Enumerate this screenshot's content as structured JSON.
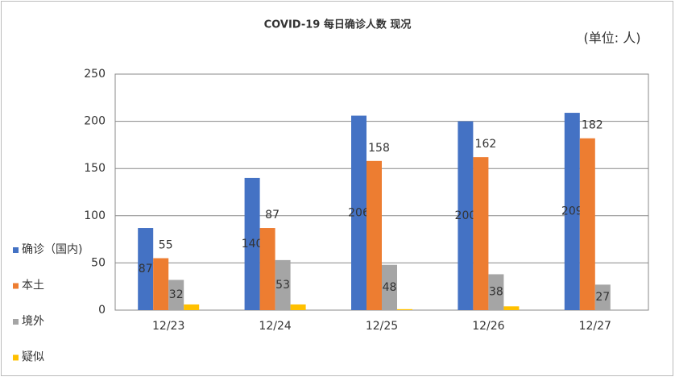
{
  "chart_data": {
    "type": "bar",
    "title": "COVID-19 每日确诊人数 现况",
    "unit_note": "(单位: 人)",
    "categories": [
      "12/23",
      "12/24",
      "12/25",
      "12/26",
      "12/27"
    ],
    "series": [
      {
        "name": "确诊（国内)",
        "color": "#4472c4",
        "values": [
          87,
          140,
          206,
          200,
          209
        ],
        "labels": "middle"
      },
      {
        "name": "本土",
        "color": "#ed7d31",
        "values": [
          55,
          87,
          158,
          162,
          182
        ],
        "labels": "top"
      },
      {
        "name": "境外",
        "color": "#a5a5a5",
        "values": [
          32,
          53,
          48,
          38,
          27
        ],
        "labels": "middle"
      },
      {
        "name": "疑似",
        "color": "#ffc000",
        "values": [
          6,
          6,
          1,
          4,
          0
        ],
        "labels": "none"
      }
    ],
    "ylim": [
      0,
      250
    ],
    "yticks": [
      0,
      50,
      100,
      150,
      200,
      250
    ],
    "grid": true,
    "legend": "left"
  }
}
